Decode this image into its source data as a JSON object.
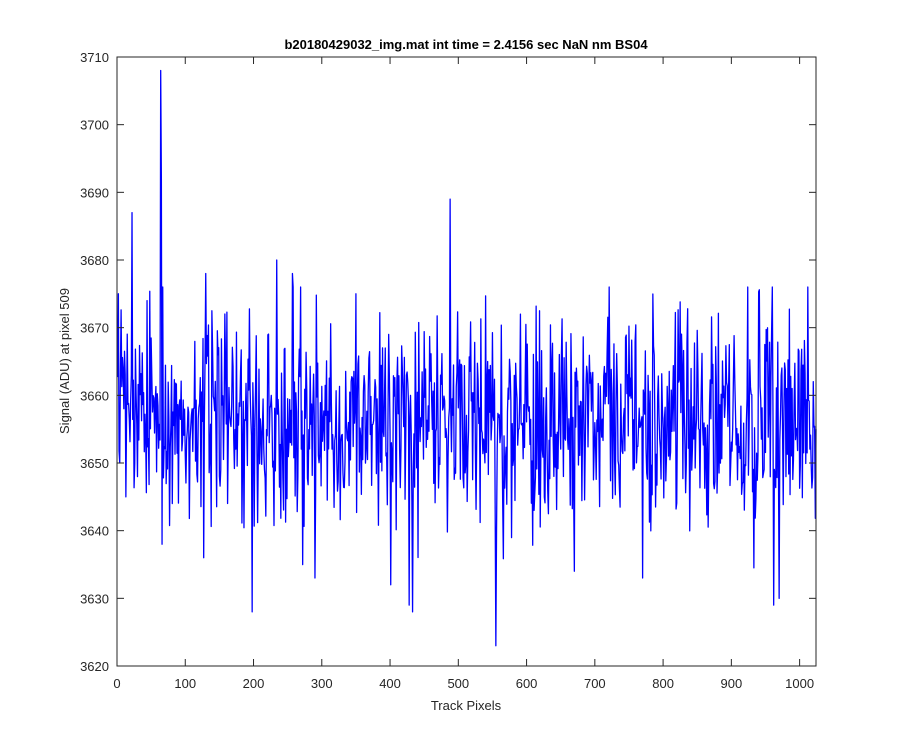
{
  "chart_data": {
    "type": "line",
    "title": "b20180429032_img.mat int time = 2.4156 sec  NaN nm BS04",
    "xlabel": "Track Pixels",
    "ylabel": "Signal (ADU) at pixel 509",
    "xlim": [
      0,
      1024
    ],
    "ylim": [
      3620,
      3710
    ],
    "xticks": [
      0,
      100,
      200,
      300,
      400,
      500,
      600,
      700,
      800,
      900,
      1000
    ],
    "yticks": [
      3620,
      3630,
      3640,
      3650,
      3660,
      3670,
      3680,
      3690,
      3700,
      3710
    ],
    "grid": false,
    "series": [
      {
        "color": "#0000ff",
        "x_start": 1,
        "x_step": 1,
        "noise_mean": 3656,
        "noise_std": 8,
        "notable_points": [
          {
            "x": 2,
            "y": 3675
          },
          {
            "x": 4,
            "y": 3650
          },
          {
            "x": 13,
            "y": 3645
          },
          {
            "x": 22,
            "y": 3687
          },
          {
            "x": 26,
            "y": 3650
          },
          {
            "x": 44,
            "y": 3674
          },
          {
            "x": 64,
            "y": 3708
          },
          {
            "x": 65,
            "y": 3692
          },
          {
            "x": 66,
            "y": 3638
          },
          {
            "x": 110,
            "y": 3658
          },
          {
            "x": 127,
            "y": 3636
          },
          {
            "x": 130,
            "y": 3678
          },
          {
            "x": 198,
            "y": 3628
          },
          {
            "x": 234,
            "y": 3680
          },
          {
            "x": 257,
            "y": 3678
          },
          {
            "x": 290,
            "y": 3633
          },
          {
            "x": 350,
            "y": 3675
          },
          {
            "x": 401,
            "y": 3632
          },
          {
            "x": 428,
            "y": 3629
          },
          {
            "x": 433,
            "y": 3628
          },
          {
            "x": 488,
            "y": 3689
          },
          {
            "x": 555,
            "y": 3623
          },
          {
            "x": 591,
            "y": 3672
          },
          {
            "x": 659,
            "y": 3660
          },
          {
            "x": 770,
            "y": 3633
          },
          {
            "x": 960,
            "y": 3676
          },
          {
            "x": 962,
            "y": 3629
          },
          {
            "x": 970,
            "y": 3630
          },
          {
            "x": 1024,
            "y": 3655
          }
        ]
      }
    ]
  }
}
